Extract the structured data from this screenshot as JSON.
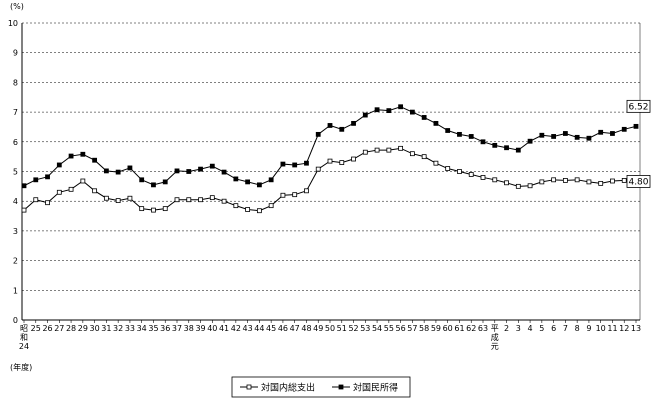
{
  "chart_data": {
    "type": "line",
    "unit_label": "(%)",
    "era_start_label": "昭和",
    "era_start_year": "24",
    "year_unit_label": "(年度)",
    "heisei_label": "平成元",
    "ylim": [
      0,
      10
    ],
    "yticks": [
      "0",
      "1",
      "2",
      "3",
      "4",
      "5",
      "6",
      "7",
      "8",
      "9",
      "10"
    ],
    "grid": true,
    "legend_position": "bottom-center",
    "categories": [
      "24",
      "25",
      "26",
      "27",
      "28",
      "29",
      "30",
      "31",
      "32",
      "33",
      "34",
      "35",
      "36",
      "37",
      "38",
      "39",
      "40",
      "41",
      "42",
      "43",
      "44",
      "45",
      "46",
      "47",
      "48",
      "49",
      "50",
      "51",
      "52",
      "53",
      "54",
      "55",
      "56",
      "57",
      "58",
      "59",
      "60",
      "61",
      "62",
      "63",
      "元",
      "2",
      "3",
      "4",
      "5",
      "6",
      "7",
      "8",
      "9",
      "10",
      "11",
      "12",
      "13"
    ],
    "series": [
      {
        "name": "対国内総支出",
        "marker": "open-square",
        "values": [
          3.7,
          4.05,
          3.95,
          4.3,
          4.4,
          4.68,
          4.35,
          4.1,
          4.02,
          4.1,
          3.75,
          3.7,
          3.75,
          4.05,
          4.05,
          4.05,
          4.12,
          4.0,
          3.85,
          3.72,
          3.68,
          3.85,
          4.2,
          4.22,
          4.35,
          5.08,
          5.35,
          5.3,
          5.42,
          5.65,
          5.72,
          5.72,
          5.78,
          5.6,
          5.5,
          5.28,
          5.1,
          5.0,
          4.9,
          4.8,
          4.72,
          4.62,
          4.5,
          4.52,
          4.65,
          4.72,
          4.7,
          4.72,
          4.65,
          4.6,
          4.68,
          4.7,
          4.8
        ]
      },
      {
        "name": "対国民所得",
        "marker": "filled-square",
        "values": [
          4.52,
          4.72,
          4.82,
          5.22,
          5.52,
          5.58,
          5.38,
          5.02,
          4.98,
          5.12,
          4.72,
          4.55,
          4.65,
          5.02,
          5.0,
          5.08,
          5.18,
          4.98,
          4.75,
          4.65,
          4.55,
          4.72,
          5.25,
          5.22,
          5.28,
          6.25,
          6.55,
          6.42,
          6.62,
          6.9,
          7.08,
          7.05,
          7.18,
          7.0,
          6.82,
          6.62,
          6.38,
          6.25,
          6.18,
          6.0,
          5.88,
          5.8,
          5.72,
          6.02,
          6.22,
          6.18,
          6.28,
          6.15,
          6.12,
          6.32,
          6.28,
          6.42,
          6.52
        ]
      }
    ],
    "annotations": [
      {
        "series": 1,
        "text": "6.52"
      },
      {
        "series": 0,
        "text": "4.80"
      }
    ]
  }
}
